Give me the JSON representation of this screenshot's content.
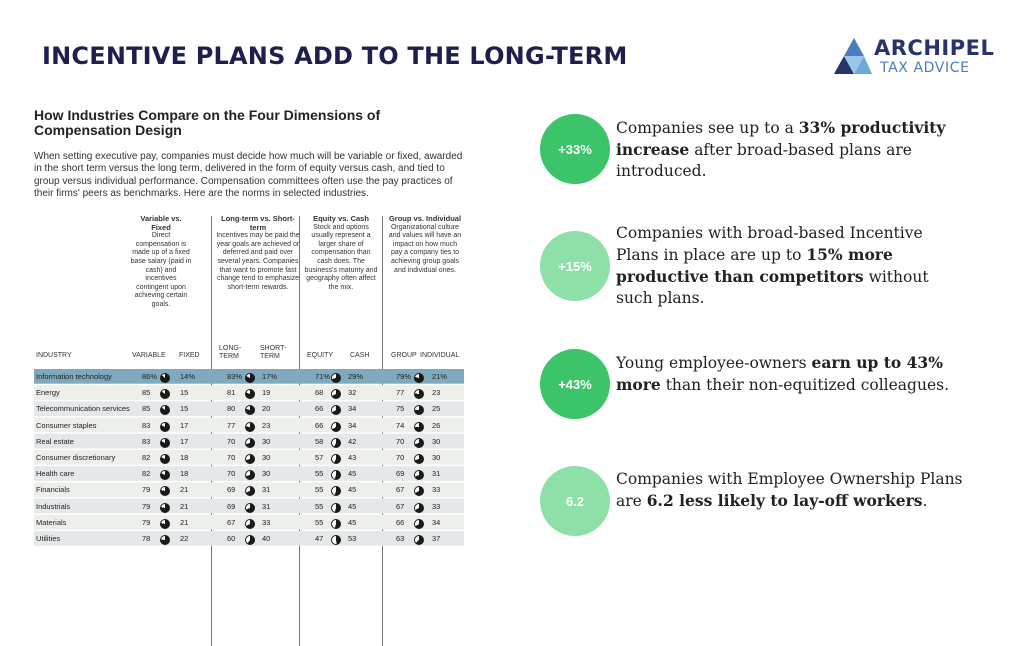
{
  "slide": {
    "title": "INCENTIVE PLANS ADD TO THE LONG-TERM"
  },
  "logo": {
    "main": "ARCHIPEL",
    "sub": "TAX ADVICE",
    "colors": [
      "#27336b",
      "#4a7cc0",
      "#6ea8dc"
    ]
  },
  "figure": {
    "title": "How Industries Compare on the Four Dimensions of Compensation Design",
    "description": "When setting executive pay, companies must decide how much will be variable or fixed, awarded in the short term versus the long term, delivered in the form of equity versus cash, and tied to group versus individual performance. Compensation committees often use the pay practices of their firms' peers as benchmarks. Here are the norms in selected industries.",
    "dimensions": [
      {
        "title": "Variable vs. Fixed",
        "text": "Direct compensation is made up of a fixed base salary (paid in cash) and incentives contingent upon achieving certain goals."
      },
      {
        "title": "Long-term vs. Short-term",
        "text": "Incentives may be paid the year goals are achieved or deferred and paid over several years. Companies that want to promote fast change tend to emphasize short-term rewards."
      },
      {
        "title": "Equity vs. Cash",
        "text": "Stock and options usually represent a larger share of compensation than cash does. The business's maturity and geography often affect the mix."
      },
      {
        "title": "Group vs. Individual",
        "text": "Organizational culture and values will have an impact on how much pay a company ties to achieving group goals and individual ones."
      }
    ],
    "columns": {
      "industry": "INDUSTRY",
      "variable": "VARIABLE",
      "fixed": "FIXED",
      "long_term": "LONG-TERM",
      "short_term": "SHORT-TERM",
      "equity": "EQUITY",
      "cash": "CASH",
      "group": "GROUP",
      "individual": "INDIVIDUAL"
    },
    "rows": [
      {
        "industry": "Information technology",
        "variable": "86%",
        "fixed": "14%",
        "long": "83%",
        "short": "17%",
        "equity": "71%",
        "cash": "29%",
        "group": "79%",
        "individual": "21%"
      },
      {
        "industry": "Energy",
        "variable": "85",
        "fixed": "15",
        "long": "81",
        "short": "19",
        "equity": "68",
        "cash": "32",
        "group": "77",
        "individual": "23"
      },
      {
        "industry": "Telecommunication services",
        "variable": "85",
        "fixed": "15",
        "long": "80",
        "short": "20",
        "equity": "66",
        "cash": "34",
        "group": "75",
        "individual": "25"
      },
      {
        "industry": "Consumer staples",
        "variable": "83",
        "fixed": "17",
        "long": "77",
        "short": "23",
        "equity": "66",
        "cash": "34",
        "group": "74",
        "individual": "26"
      },
      {
        "industry": "Real estate",
        "variable": "83",
        "fixed": "17",
        "long": "70",
        "short": "30",
        "equity": "58",
        "cash": "42",
        "group": "70",
        "individual": "30"
      },
      {
        "industry": "Consumer discretionary",
        "variable": "82",
        "fixed": "18",
        "long": "70",
        "short": "30",
        "equity": "57",
        "cash": "43",
        "group": "70",
        "individual": "30"
      },
      {
        "industry": "Health care",
        "variable": "82",
        "fixed": "18",
        "long": "70",
        "short": "30",
        "equity": "55",
        "cash": "45",
        "group": "69",
        "individual": "31"
      },
      {
        "industry": "Financials",
        "variable": "79",
        "fixed": "21",
        "long": "69",
        "short": "31",
        "equity": "55",
        "cash": "45",
        "group": "67",
        "individual": "33"
      },
      {
        "industry": "Industrials",
        "variable": "79",
        "fixed": "21",
        "long": "69",
        "short": "31",
        "equity": "55",
        "cash": "45",
        "group": "67",
        "individual": "33"
      },
      {
        "industry": "Materials",
        "variable": "79",
        "fixed": "21",
        "long": "67",
        "short": "33",
        "equity": "55",
        "cash": "45",
        "group": "66",
        "individual": "34"
      },
      {
        "industry": "Utilities",
        "variable": "78",
        "fixed": "22",
        "long": "60",
        "short": "40",
        "equity": "47",
        "cash": "53",
        "group": "63",
        "individual": "37"
      }
    ]
  },
  "stats": [
    {
      "badge": "+33%",
      "color": "#3cc46a",
      "text": [
        {
          "t": "Companies see up to a ",
          "b": false
        },
        {
          "t": "33% productivity increase",
          "b": true
        },
        {
          "t": " after broad-based plans are introduced.",
          "b": false
        }
      ]
    },
    {
      "badge": "+15%",
      "color": "#8ee0a8",
      "text": [
        {
          "t": "Companies with broad-based Incentive Plans in place are up to ",
          "b": false
        },
        {
          "t": "15%  more productive than competitors",
          "b": true
        },
        {
          "t": " without such plans.",
          "b": false
        }
      ]
    },
    {
      "badge": "+43%",
      "color": "#3cc46a",
      "text": [
        {
          "t": "Young employee-owners ",
          "b": false
        },
        {
          "t": "earn up to 43% more",
          "b": true
        },
        {
          "t": " than their non-equitized colleagues.",
          "b": false
        }
      ]
    },
    {
      "badge": "6.2",
      "color": "#8ee0a8",
      "text": [
        {
          "t": "Companies with Employee Ownership Plans are ",
          "b": false
        },
        {
          "t": "6.2 less likely to lay-off workers",
          "b": true
        },
        {
          "t": ".",
          "b": false
        }
      ]
    }
  ]
}
